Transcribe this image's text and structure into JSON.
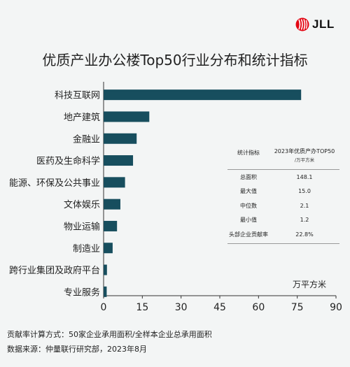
{
  "brand": {
    "name": "JLL",
    "color": "#e30613"
  },
  "colors": {
    "bar": "#174e5e",
    "axis": "#333333"
  },
  "chart_data": {
    "type": "bar",
    "orientation": "horizontal",
    "title": "优质产业办公楼Top50行业分布和统计指标",
    "unit_label": "万平方米",
    "categories": [
      "科技互联网",
      "地产建筑",
      "金融业",
      "医药及生命科学",
      "能源、环保及公共事业",
      "文体娱乐",
      "物业运输",
      "制造业",
      "跨行业集团及政府平台",
      "专业服务"
    ],
    "values": [
      76.5,
      17.7,
      12.8,
      11.4,
      8.3,
      6.5,
      5.2,
      3.5,
      1.3,
      1.2
    ],
    "xlim": [
      0,
      90
    ],
    "xticks": [
      "0",
      "15",
      "30",
      "45",
      "60",
      "75",
      "90"
    ],
    "grid": false,
    "legend": "none"
  },
  "stats_table": {
    "header_metric": "统计指标",
    "header_value": "2023年优质产办TOP50",
    "header_value_unit": "/万平方米",
    "rows": [
      {
        "label": "总面积",
        "value": "148.1"
      },
      {
        "label": "最大值",
        "value": "15.0"
      },
      {
        "label": "中位数",
        "value": "2.1"
      },
      {
        "label": "最小值",
        "value": "1.2"
      },
      {
        "label": "头部企业贡献率",
        "value": "22.8%"
      }
    ]
  },
  "footnotes": {
    "note": "贡献率计算方式：50家企业承用面积/全样本企业总承用面积",
    "source": "数据来源：仲量联行研究部，2023年8月"
  }
}
